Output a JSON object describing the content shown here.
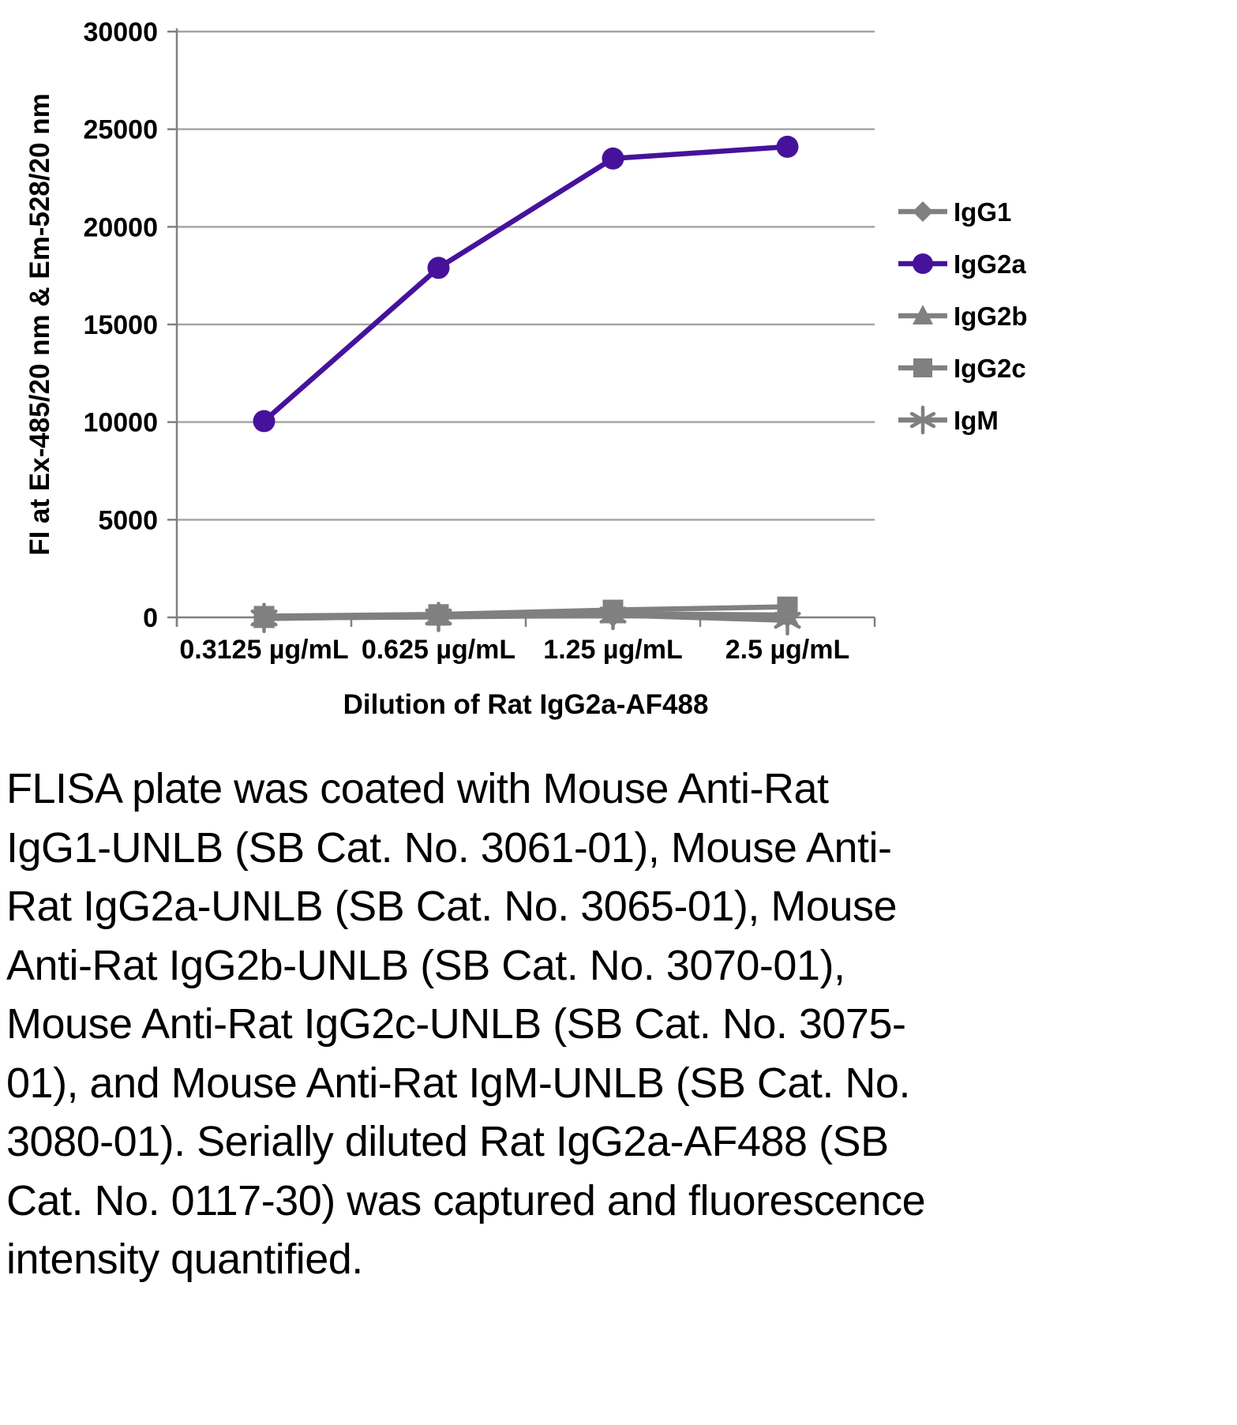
{
  "chart_data": {
    "type": "line",
    "title": "",
    "xlabel": "Dilution of Rat IgG2a-AF488",
    "ylabel": "FI at Ex-485/20 nm & Em-528/20 nm",
    "categories": [
      "0.3125 µg/mL",
      "0.625 µg/mL",
      "1.25 µg/mL",
      "2.5 µg/mL"
    ],
    "ylim": [
      0,
      30000
    ],
    "ytick_step": 5000,
    "grid": "horizontal",
    "legend_position": "right",
    "colors": {
      "gridline": "#A6A6A6",
      "axis": "#808080",
      "accent_purple": "#46129B",
      "series_gray": "#808080"
    },
    "series": [
      {
        "name": "IgG1",
        "marker": "diamond",
        "color": "#808080",
        "values": [
          30,
          50,
          80,
          60
        ]
      },
      {
        "name": "IgG2a",
        "marker": "circle",
        "color": "#46129B",
        "values": [
          10050,
          17900,
          23500,
          24100
        ]
      },
      {
        "name": "IgG2b",
        "marker": "triangle",
        "color": "#808080",
        "values": [
          -60,
          60,
          180,
          120
        ]
      },
      {
        "name": "IgG2c",
        "marker": "square",
        "color": "#808080",
        "values": [
          60,
          150,
          380,
          540
        ]
      },
      {
        "name": "IgM",
        "marker": "asterisk",
        "color": "#808080",
        "values": [
          -30,
          20,
          120,
          -150
        ]
      }
    ]
  },
  "caption": "FLISA plate was coated with Mouse Anti-Rat IgG1-UNLB (SB Cat. No. 3061-01), Mouse Anti-Rat IgG2a-UNLB (SB Cat. No. 3065-01), Mouse Anti-Rat IgG2b-UNLB (SB Cat. No. 3070-01), Mouse Anti-Rat IgG2c-UNLB (SB Cat. No. 3075-01), and Mouse Anti-Rat IgM-UNLB (SB Cat. No. 3080-01).  Serially diluted Rat IgG2a-AF488 (SB Cat. No. 0117-30) was captured and fluorescence intensity quantified."
}
